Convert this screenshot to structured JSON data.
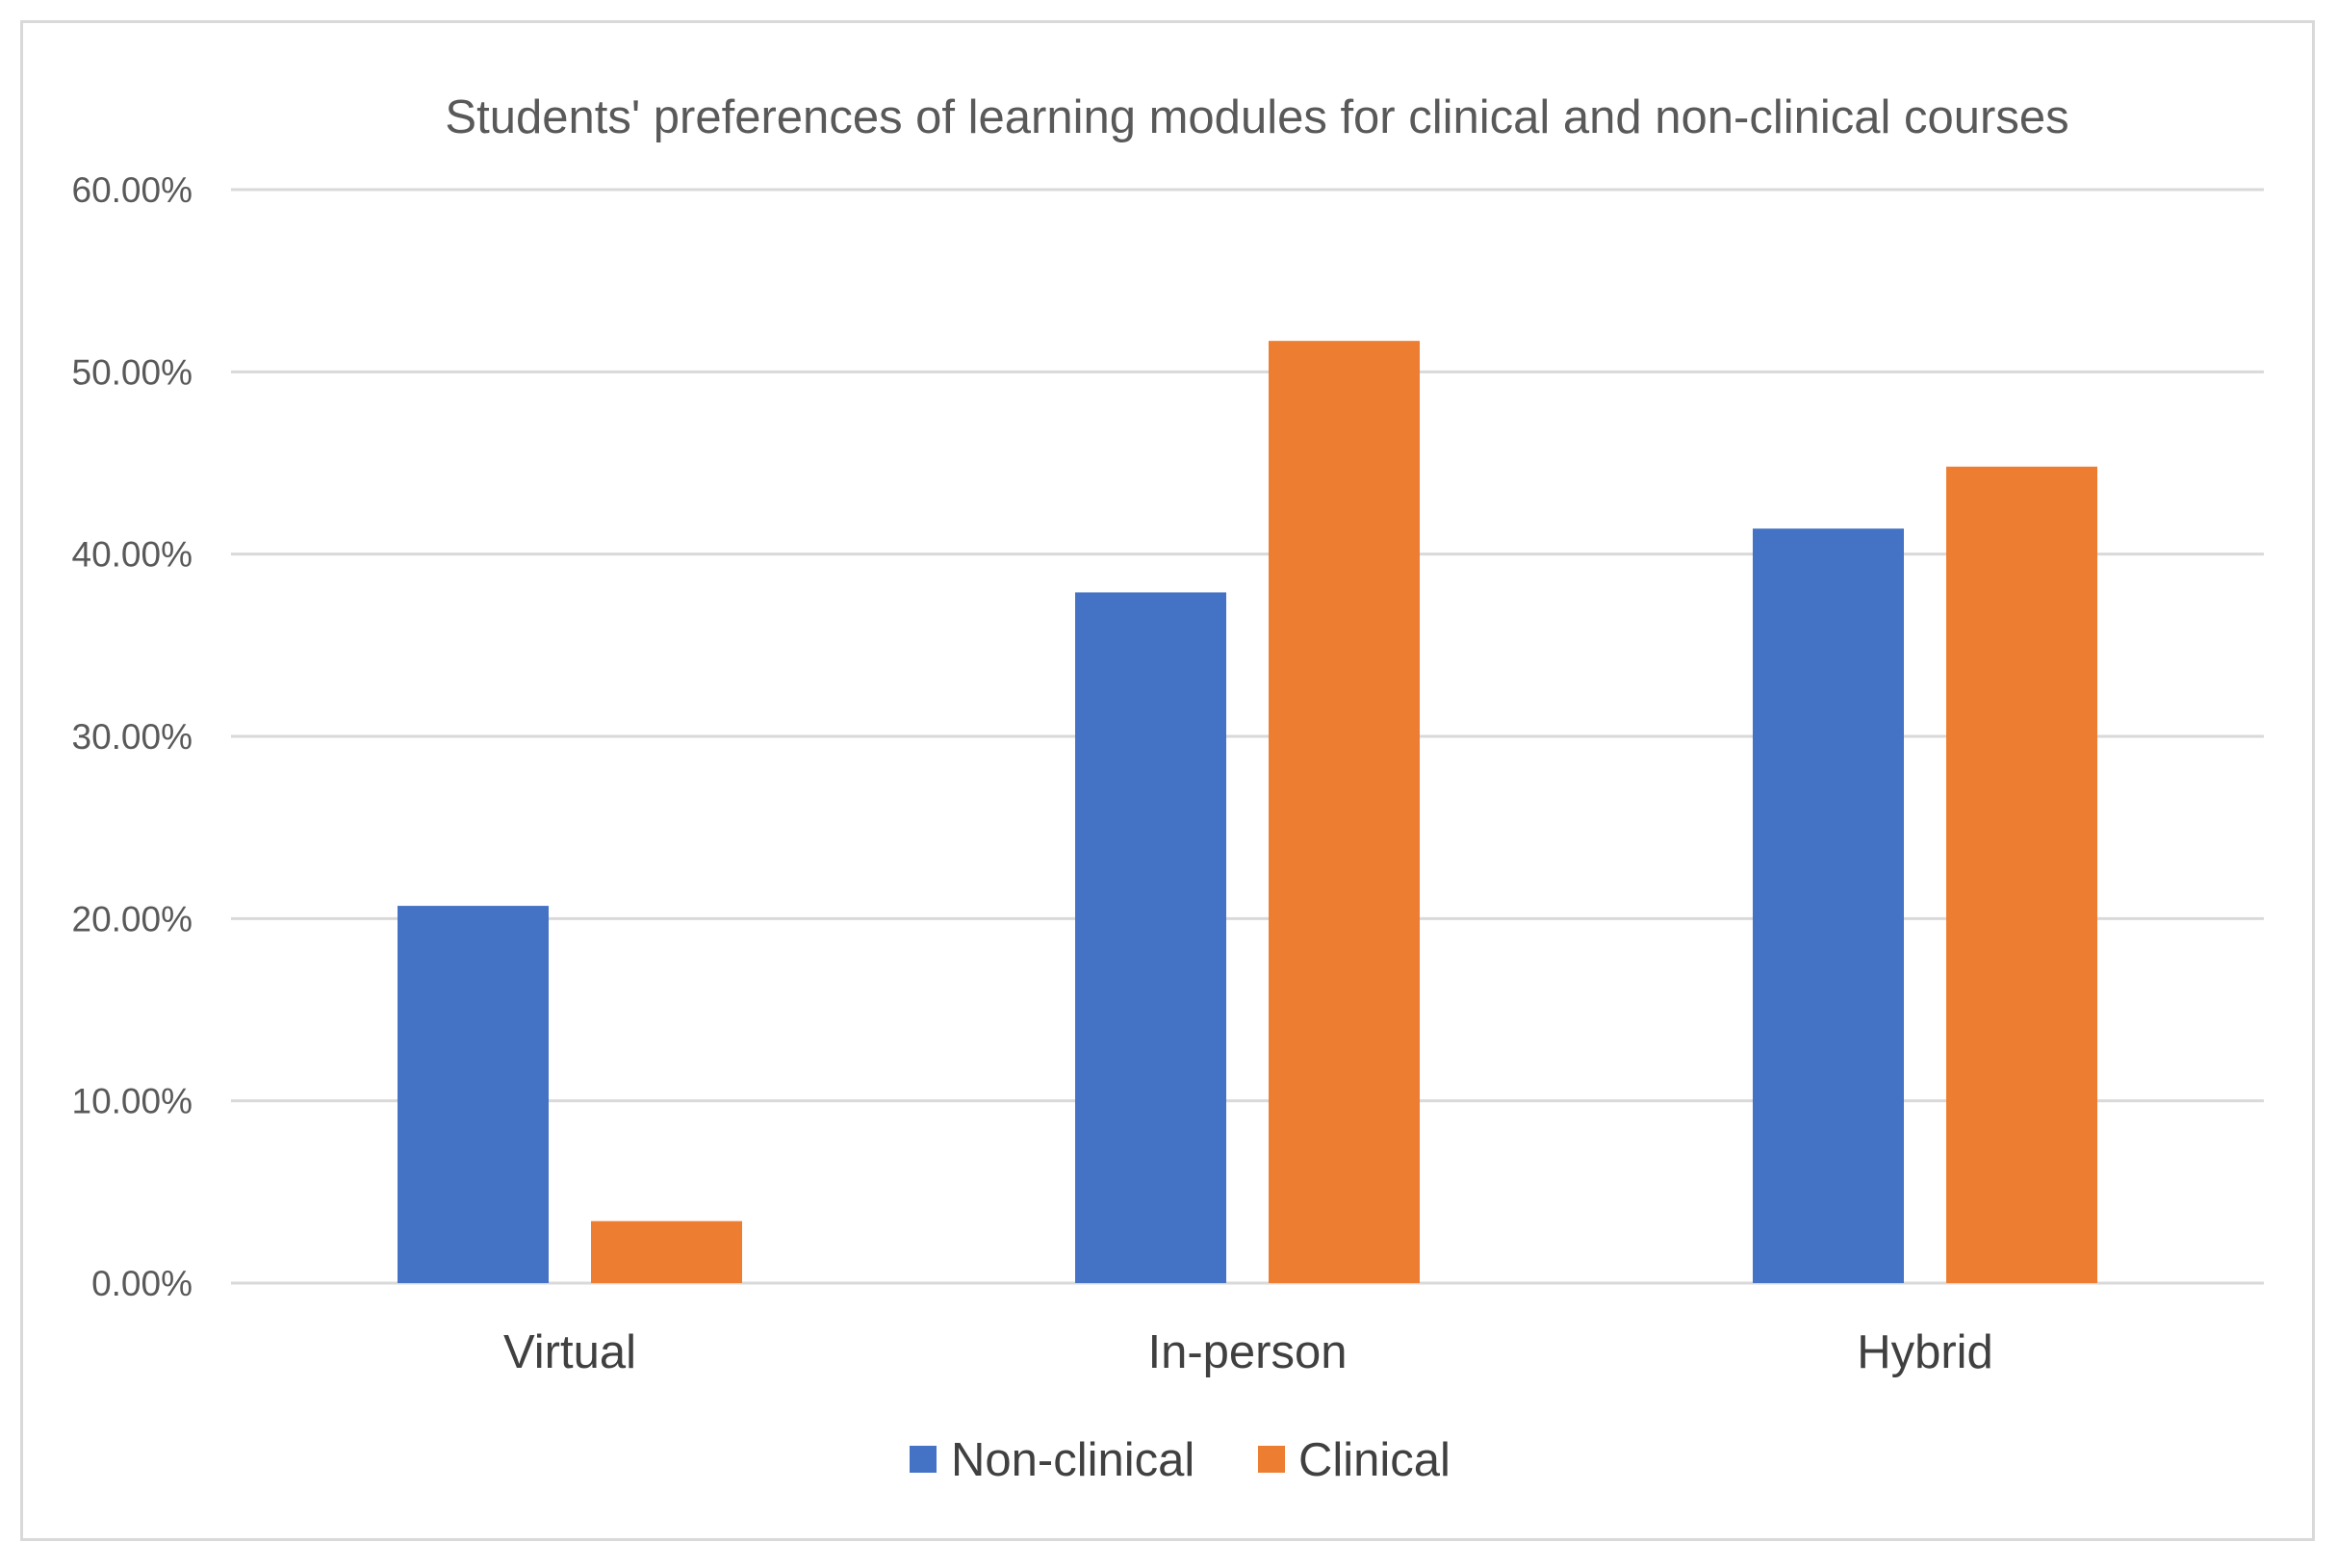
{
  "chart_data": {
    "type": "bar",
    "title": "Students' preferences of learning modules for clinical and non-clinical courses",
    "categories": [
      "Virtual",
      "In-person",
      "Hybrid"
    ],
    "series": [
      {
        "name": "Non-clinical",
        "color": "#4472c4",
        "values": [
          20.7,
          37.9,
          41.4
        ]
      },
      {
        "name": "Clinical",
        "color": "#ed7d31",
        "values": [
          3.4,
          51.7,
          44.8
        ]
      }
    ],
    "ylim": [
      0,
      60
    ],
    "yticks": [
      0,
      10,
      20,
      30,
      40,
      50,
      60
    ],
    "ytick_labels": [
      "0.00%",
      "10.00%",
      "20.00%",
      "30.00%",
      "40.00%",
      "50.00%",
      "60.00%"
    ],
    "xlabel": "",
    "ylabel": "",
    "grid": true,
    "legend": "bottom-center"
  }
}
